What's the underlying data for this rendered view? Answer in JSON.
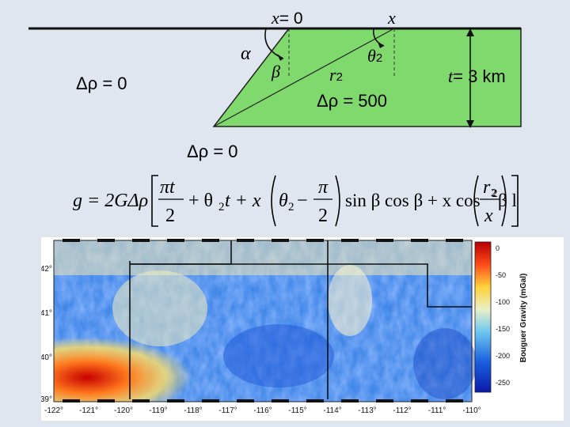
{
  "diagram": {
    "x0_label_var": "x",
    "x0_label_val": "= 0",
    "x_label": "x",
    "alpha": "α",
    "beta": "β",
    "r2_var": "r",
    "r2_sub": "2",
    "theta2_var": "θ",
    "theta2_sub": "2",
    "delta_rho_left": "Δρ = 0",
    "delta_rho_body": "Δρ = 500",
    "delta_rho_bottom": "Δρ = 0",
    "thickness_var": "t",
    "thickness_val": "= 3 km",
    "body_fill": "#80d96d"
  },
  "equation": {
    "lhs": "g = 2GΔρ",
    "pi_t": "πt",
    "two_a": "2",
    "theta2_t": "+ θ",
    "sub2_a": "2",
    "t_plus_x": "t + x",
    "theta2_b": "θ",
    "sub2_b": "2",
    "minus": "−",
    "pi": "π",
    "two_b": "2",
    "trig": "sin β cos β + x cos",
    "sup2": "2",
    "beta_ln": "β ln",
    "r": "r",
    "sub2_c": "2",
    "x_den": "x"
  },
  "map": {
    "colorbar_ticks": [
      "0",
      "-50",
      "-100",
      "-150",
      "-200",
      "-250"
    ],
    "colorbar_label": "Bouguer Gravity (mGal)",
    "y_ticks": [
      "42°",
      "41°",
      "40°",
      "39°"
    ],
    "x_ticks": [
      "-122°",
      "-121°",
      "-120°",
      "-119°",
      "-118°",
      "-117°",
      "-116°",
      "-115°",
      "-114°",
      "-113°",
      "-112°",
      "-111°",
      "-110°"
    ]
  }
}
